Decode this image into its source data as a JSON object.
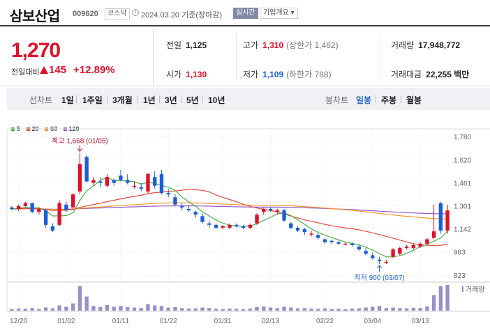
{
  "header": {
    "stock_name": "삼보산업",
    "stock_code": "009620",
    "market_badge": "코스닥",
    "date_text": "2024.03.20 기준(장마감)",
    "realtime_button": "실시간",
    "overview_button": "기업개요 ▾"
  },
  "price": {
    "current": "1,270",
    "change_label": "전일대비",
    "change_value": "145",
    "change_pct": "+12.89%"
  },
  "stats": {
    "prev_label": "전일",
    "prev_value": "1,125",
    "high_label": "고가",
    "high_value": "1,310",
    "high_sub": "(상한가 1,462)",
    "volume_label": "거래량",
    "volume_value": "17,948,772",
    "open_label": "시가",
    "open_value": "1,130",
    "low_label": "저가",
    "low_value": "1,109",
    "low_sub": "(하한가 788)",
    "amount_label": "거래대금",
    "amount_value": "22,255 백만"
  },
  "toolbar": {
    "line_label": "선차트",
    "ranges": [
      "1일",
      "1주일",
      "3개월",
      "1년",
      "3년",
      "5년",
      "10년"
    ],
    "candle_label": "봉차트",
    "candle_daily": "일봉",
    "candle_weekly": "주봉",
    "candle_monthly": "월봉"
  },
  "colors": {
    "up": "#e0102b",
    "down": "#1a5fd6",
    "ma5": "#4cb04c",
    "ma20": "#e04a3c",
    "ma60": "#f0962a",
    "ma120": "#9159c8"
  },
  "chart_data": {
    "type": "candlestick",
    "legend": [
      "5",
      "20",
      "60",
      "120"
    ],
    "y_ticks": [
      1780,
      1620,
      1461,
      1301,
      1142,
      983,
      823
    ],
    "ylim": [
      823,
      1780
    ],
    "x_tick_labels": [
      {
        "i": 1,
        "label": "12/20"
      },
      {
        "i": 8,
        "label": "01/02"
      },
      {
        "i": 16,
        "label": "01/11"
      },
      {
        "i": 23,
        "label": "01/22"
      },
      {
        "i": 31,
        "label": "01/31"
      },
      {
        "i": 38,
        "label": "02/13"
      },
      {
        "i": 46,
        "label": "02/22"
      },
      {
        "i": 53,
        "label": "03/04"
      },
      {
        "i": 60,
        "label": "03/13"
      }
    ],
    "high_annotation": {
      "text": "최고 1,668 (01/05)",
      "i": 10,
      "value": 1668
    },
    "low_annotation": {
      "text": "최저 900 (03/07)",
      "i": 54,
      "value": 900
    },
    "volume_label": "거래량",
    "candles": [
      [
        1290,
        1300,
        1270,
        1280
      ],
      [
        1280,
        1310,
        1265,
        1300
      ],
      [
        1300,
        1330,
        1290,
        1320
      ],
      [
        1320,
        1325,
        1250,
        1260
      ],
      [
        1260,
        1290,
        1240,
        1280
      ],
      [
        1270,
        1280,
        1150,
        1170
      ],
      [
        1160,
        1180,
        1120,
        1130
      ],
      [
        1170,
        1340,
        1160,
        1320
      ],
      [
        1310,
        1330,
        1260,
        1270
      ],
      [
        1290,
        1390,
        1280,
        1380
      ],
      [
        1400,
        1668,
        1380,
        1590
      ],
      [
        1640,
        1650,
        1460,
        1470
      ],
      [
        1460,
        1500,
        1440,
        1480
      ],
      [
        1470,
        1500,
        1430,
        1460
      ],
      [
        1440,
        1520,
        1430,
        1500
      ],
      [
        1480,
        1490,
        1440,
        1460
      ],
      [
        1510,
        1550,
        1470,
        1480
      ],
      [
        1480,
        1520,
        1450,
        1460
      ],
      [
        1440,
        1470,
        1420,
        1440
      ],
      [
        1430,
        1460,
        1400,
        1420
      ],
      [
        1400,
        1530,
        1390,
        1520
      ],
      [
        1500,
        1540,
        1420,
        1440
      ],
      [
        1520,
        1550,
        1380,
        1390
      ],
      [
        1390,
        1420,
        1360,
        1380
      ],
      [
        1360,
        1380,
        1300,
        1310
      ],
      [
        1300,
        1320,
        1270,
        1290
      ],
      [
        1280,
        1300,
        1260,
        1270
      ],
      [
        1260,
        1270,
        1220,
        1240
      ],
      [
        1230,
        1250,
        1180,
        1190
      ],
      [
        1180,
        1200,
        1150,
        1170
      ],
      [
        1170,
        1180,
        1140,
        1150
      ],
      [
        1150,
        1170,
        1140,
        1160
      ],
      [
        1150,
        1180,
        1140,
        1170
      ],
      [
        1170,
        1180,
        1150,
        1160
      ],
      [
        1160,
        1170,
        1140,
        1150
      ],
      [
        1150,
        1180,
        1140,
        1170
      ],
      [
        1180,
        1250,
        1170,
        1240
      ],
      [
        1260,
        1290,
        1240,
        1280
      ],
      [
        1280,
        1290,
        1260,
        1270
      ],
      [
        1260,
        1280,
        1240,
        1270
      ],
      [
        1270,
        1280,
        1190,
        1200
      ],
      [
        1180,
        1190,
        1140,
        1150
      ],
      [
        1150,
        1160,
        1120,
        1130
      ],
      [
        1140,
        1150,
        1100,
        1120
      ],
      [
        1110,
        1130,
        1090,
        1110
      ],
      [
        1100,
        1110,
        1070,
        1080
      ],
      [
        1070,
        1080,
        1040,
        1050
      ],
      [
        1060,
        1070,
        1040,
        1050
      ],
      [
        1050,
        1060,
        1030,
        1040
      ],
      [
        1040,
        1050,
        1030,
        1040
      ],
      [
        1040,
        1050,
        1020,
        1030
      ],
      [
        1020,
        1030,
        990,
        1000
      ],
      [
        990,
        1010,
        960,
        970
      ],
      [
        960,
        980,
        930,
        940
      ],
      [
        930,
        950,
        900,
        920
      ],
      [
        910,
        930,
        900,
        915
      ],
      [
        950,
        1010,
        940,
        1000
      ],
      [
        970,
        1020,
        960,
        1010
      ],
      [
        1010,
        1030,
        1000,
        1020
      ],
      [
        1010,
        1040,
        1000,
        1030
      ],
      [
        1020,
        1050,
        1010,
        1040
      ],
      [
        1040,
        1080,
        1030,
        1070
      ],
      [
        1080,
        1310,
        1070,
        1125
      ],
      [
        1320,
        1330,
        1110,
        1130
      ],
      [
        1130,
        1310,
        1109,
        1270
      ]
    ],
    "volume": [
      0.06,
      0.08,
      0.07,
      0.1,
      0.06,
      0.12,
      0.09,
      0.2,
      0.15,
      0.28,
      0.95,
      0.55,
      0.18,
      0.14,
      0.22,
      0.15,
      0.18,
      0.14,
      0.12,
      0.1,
      0.25,
      0.2,
      0.18,
      0.12,
      0.14,
      0.1,
      0.08,
      0.09,
      0.12,
      0.1,
      0.07,
      0.06,
      0.08,
      0.07,
      0.06,
      0.08,
      0.14,
      0.16,
      0.12,
      0.1,
      0.15,
      0.12,
      0.09,
      0.1,
      0.08,
      0.07,
      0.09,
      0.06,
      0.07,
      0.06,
      0.08,
      0.09,
      0.12,
      0.15,
      0.18,
      0.1,
      0.12,
      0.1,
      0.09,
      0.11,
      0.1,
      0.16,
      0.6,
      0.95,
      1.0
    ]
  }
}
